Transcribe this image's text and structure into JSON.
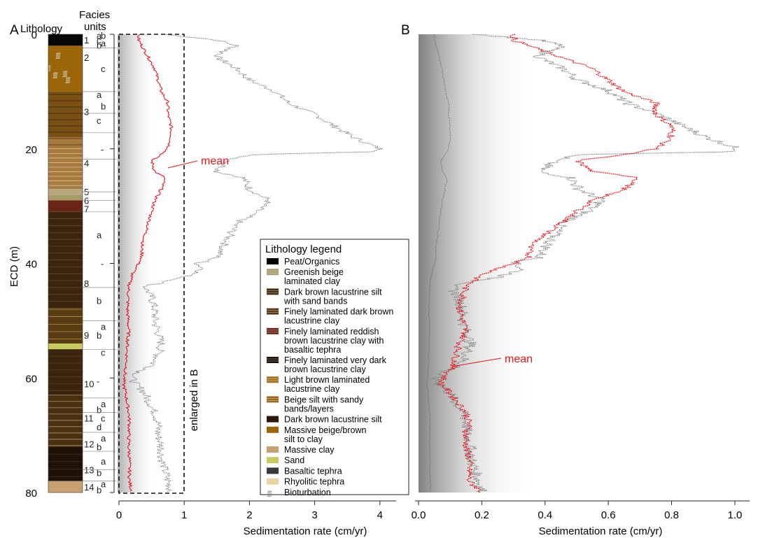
{
  "panels": {
    "a": "A",
    "b": "B"
  },
  "column_headers": {
    "lithology": "Lithology",
    "facies_1": "Facies",
    "facies_2": "units"
  },
  "colors": {
    "mean": "#e8141c",
    "spread": "#808080",
    "axis": "#222222"
  },
  "chart_data": [
    {
      "type": "line",
      "panel": "A",
      "ylabel": "ECD (m)",
      "xlabel": "Sedimentation rate (cm/yr)",
      "y_ticks": [
        0,
        20,
        40,
        60,
        80
      ],
      "x_ticks": [
        "0",
        "1",
        "2",
        "3",
        "4"
      ],
      "xlim": [
        0,
        4.25
      ],
      "ylim": [
        80,
        0
      ],
      "annotation": "mean",
      "box_label": "enlarged in B",
      "series": [
        {
          "name": "mean",
          "depth": [
            0,
            1,
            2,
            4,
            6,
            8,
            10,
            12,
            14,
            16,
            18,
            20,
            21,
            22,
            24,
            25,
            27,
            29,
            31,
            33,
            35,
            37,
            39,
            40,
            42,
            44,
            46,
            48,
            50,
            52,
            54,
            56,
            58,
            60,
            61,
            62,
            64,
            66,
            68,
            70,
            72,
            74,
            76,
            78,
            80
          ],
          "rate": [
            0.3,
            0.3,
            0.35,
            0.45,
            0.55,
            0.6,
            0.65,
            0.75,
            0.75,
            0.8,
            0.8,
            0.75,
            0.65,
            0.5,
            0.55,
            0.7,
            0.65,
            0.55,
            0.5,
            0.45,
            0.4,
            0.35,
            0.35,
            0.3,
            0.2,
            0.15,
            0.14,
            0.13,
            0.14,
            0.15,
            0.13,
            0.12,
            0.11,
            0.08,
            0.07,
            0.09,
            0.12,
            0.15,
            0.16,
            0.15,
            0.15,
            0.16,
            0.16,
            0.16,
            0.2
          ]
        },
        {
          "name": "",
          "depth": [
            0,
            1,
            2,
            3,
            4,
            6,
            8,
            10,
            12,
            14,
            16,
            18,
            20,
            20.5,
            21,
            22,
            24,
            25,
            27,
            29,
            31,
            33,
            35,
            37,
            39,
            40,
            41,
            42,
            43,
            44,
            46,
            48,
            50,
            52,
            54,
            56,
            58,
            59,
            60,
            61,
            62,
            64,
            66,
            68,
            70,
            72,
            74,
            76,
            78,
            80
          ],
          "rate": [
            0.7,
            1.5,
            1.8,
            1.6,
            1.5,
            1.8,
            2.0,
            2.4,
            2.6,
            3.0,
            3.3,
            3.6,
            4.0,
            4.0,
            2.0,
            1.7,
            1.5,
            1.9,
            2.0,
            2.3,
            2.1,
            1.8,
            1.7,
            1.6,
            1.5,
            1.2,
            1.3,
            1.1,
            0.8,
            0.4,
            0.5,
            0.55,
            0.55,
            0.6,
            0.65,
            0.6,
            0.5,
            0.3,
            0.2,
            0.25,
            0.35,
            0.45,
            0.55,
            0.6,
            0.6,
            0.65,
            0.65,
            0.7,
            0.75,
            0.8
          ]
        }
      ]
    },
    {
      "type": "line",
      "panel": "B",
      "xlabel": "Sedimentation rate (cm/yr)",
      "x_ticks": [
        "0.0",
        "0.2",
        "0.4",
        "0.6",
        "0.8",
        "1.0"
      ],
      "xlim": [
        0,
        1.04
      ],
      "ylim": [
        80,
        0
      ],
      "annotation": "mean"
    }
  ],
  "facies": [
    {
      "label": "1",
      "depth": 1.0
    },
    {
      "label": "2",
      "depth": 4.0
    },
    {
      "label": "3",
      "depth": 13.5
    },
    {
      "label": "4",
      "depth": 22.5
    },
    {
      "label": "5",
      "depth": 27.5
    },
    {
      "label": "6",
      "depth": 29.0
    },
    {
      "label": "7",
      "depth": 30.5
    },
    {
      "label": "8",
      "depth": 43.5
    },
    {
      "label": "9",
      "depth": 52.5
    },
    {
      "label": "10",
      "depth": 61.0
    },
    {
      "label": "11",
      "depth": 67.0
    },
    {
      "label": "12",
      "depth": 71.5
    },
    {
      "label": "13",
      "depth": 76.0
    },
    {
      "label": "14",
      "depth": 79.0
    }
  ],
  "subunits": [
    {
      "label": "a",
      "depth": 0.2
    },
    {
      "label": "b",
      "depth": 0.2
    },
    {
      "label": "c",
      "depth": 1.0
    },
    {
      "label": "a",
      "depth": 1.5
    },
    {
      "label": "b",
      "depth": 1.9
    },
    {
      "label": "c",
      "depth": 6.0
    },
    {
      "label": "a",
      "depth": 10.5
    },
    {
      "label": "b",
      "depth": 12.5
    },
    {
      "label": "c",
      "depth": 15.0
    },
    {
      "label": "-",
      "depth": 20.0
    },
    {
      "label": "a",
      "depth": 35.0
    },
    {
      "label": "-",
      "depth": 40.0
    },
    {
      "label": "b",
      "depth": 46.5
    },
    {
      "label": "a",
      "depth": 51.0
    },
    {
      "label": "b",
      "depth": 52.5
    },
    {
      "label": "c",
      "depth": 55.5
    },
    {
      "label": "-",
      "depth": 60.5
    },
    {
      "label": "a",
      "depth": 64.5
    },
    {
      "label": "b",
      "depth": 65.5
    },
    {
      "label": "c",
      "depth": 67.0
    },
    {
      "label": "d",
      "depth": 68.5
    },
    {
      "label": "a",
      "depth": 70.5
    },
    {
      "label": "b",
      "depth": 72.0
    },
    {
      "label": "a",
      "depth": 74.5
    },
    {
      "label": "b",
      "depth": 76.5
    },
    {
      "label": "a",
      "depth": 78.5
    },
    {
      "label": "b",
      "depth": 79.5
    }
  ],
  "legend": {
    "title": "Lithology legend",
    "items": [
      {
        "lines": [
          "Peat/Organics"
        ],
        "color": "#000000",
        "pattern": "solid"
      },
      {
        "lines": [
          "Greenish beige",
          "laminated clay"
        ],
        "color": "#a79d6b",
        "pattern": "lines"
      },
      {
        "lines": [
          "Dark brown lacustrine silt",
          "with sand bands"
        ],
        "color": "#4a2e12",
        "pattern": "lines"
      },
      {
        "lines": [
          "Finely laminated dark brown",
          "lacustrine clay"
        ],
        "color": "#5c3a17",
        "pattern": "lines"
      },
      {
        "lines": [
          "Finely laminated reddish",
          "brown lacustrine clay with",
          "basaltic tephra"
        ],
        "color": "#6b2418",
        "pattern": "lines"
      },
      {
        "lines": [
          "Finely laminated very dark",
          "brown lacustrine clay"
        ],
        "color": "#1e1208",
        "pattern": "lines"
      },
      {
        "lines": [
          "Light brown laminated",
          "lacustrine clay"
        ],
        "color": "#a3701c",
        "pattern": "lines"
      },
      {
        "lines": [
          "Beige silt with sandy",
          "bands/layers"
        ],
        "color": "#9c6a1e",
        "pattern": "lines"
      },
      {
        "lines": [
          "Dark brown lacustrine silt"
        ],
        "color": "#2e1608",
        "pattern": "solid"
      },
      {
        "lines": [
          "Massive beige/brown",
          "silt to clay"
        ],
        "color": "#9a6608",
        "pattern": "solid"
      },
      {
        "lines": [
          "Massive clay"
        ],
        "color": "#c9a070",
        "pattern": "solid"
      },
      {
        "lines": [
          "Sand"
        ],
        "color": "#c8c860",
        "pattern": "solid"
      },
      {
        "lines": [
          "Basaltic tephra"
        ],
        "color": "#3a3a3a",
        "pattern": "solid"
      },
      {
        "lines": [
          "Rhyolitic tephra"
        ],
        "color": "#ecd2a0",
        "pattern": "solid"
      },
      {
        "lines": [
          "Bioturbation"
        ],
        "color": "#777777",
        "pattern": "bioturbation"
      }
    ]
  },
  "bioturbation_symbol": "ʃʃʃ"
}
